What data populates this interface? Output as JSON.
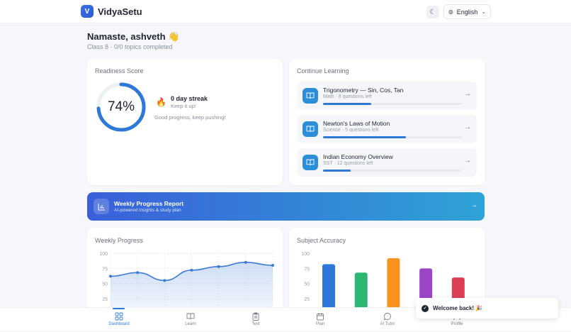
{
  "header": {
    "logo_letter": "V",
    "brand": "VidyaSetu",
    "theme_icon": "moon-icon",
    "language": "English"
  },
  "greeting": {
    "title": "Namaste, ashveth 👋",
    "subtitle": "Class 8 · 0/0 topics completed"
  },
  "readiness": {
    "title": "Readiness Score",
    "value_label": "74%",
    "value": 74,
    "streak": "0 day streak",
    "streak_sub": "Keep it up!",
    "message": "Good progress, keep pushing!",
    "color": "#2d78d8"
  },
  "continue": {
    "title": "Continue Learning",
    "items": [
      {
        "title": "Trigonometry — Sin, Cos, Tan",
        "meta": "Math · 8 questions left",
        "progress": 35
      },
      {
        "title": "Newton's Laws of Motion",
        "meta": "Science · 5 questions left",
        "progress": 60
      },
      {
        "title": "Indian Economy Overview",
        "meta": "SST · 12 questions left",
        "progress": 20
      }
    ]
  },
  "banner": {
    "title": "Weekly Progress Report",
    "subtitle": "AI-powered insights & study plan"
  },
  "chart_data": [
    {
      "type": "area",
      "title": "Weekly Progress",
      "yticks": [
        "100",
        "75",
        "50",
        "25"
      ],
      "ylim": [
        0,
        100
      ],
      "grid": true,
      "values": [
        62,
        68,
        55,
        72,
        78,
        85,
        80
      ],
      "color": "#3a7bd5"
    },
    {
      "type": "bar",
      "title": "Subject Accuracy",
      "yticks": [
        "100",
        "75",
        "50",
        "25"
      ],
      "ylim": [
        0,
        100
      ],
      "grid": false,
      "values": [
        82,
        68,
        92,
        75,
        60
      ],
      "colors": [
        "#2d78d8",
        "#2bb673",
        "#f7931e",
        "#9b45c9",
        "#dc3f55"
      ]
    }
  ],
  "nav": [
    {
      "label": "Dashboard",
      "icon": "grid-icon"
    },
    {
      "label": "Learn",
      "icon": "book-icon"
    },
    {
      "label": "Test",
      "icon": "clipboard-icon"
    },
    {
      "label": "Plan",
      "icon": "calendar-icon"
    },
    {
      "label": "AI Tutor",
      "icon": "chat-icon"
    },
    {
      "label": "Profile",
      "icon": "user-icon"
    }
  ],
  "toast": {
    "message": "Welcome back! 🎉"
  }
}
